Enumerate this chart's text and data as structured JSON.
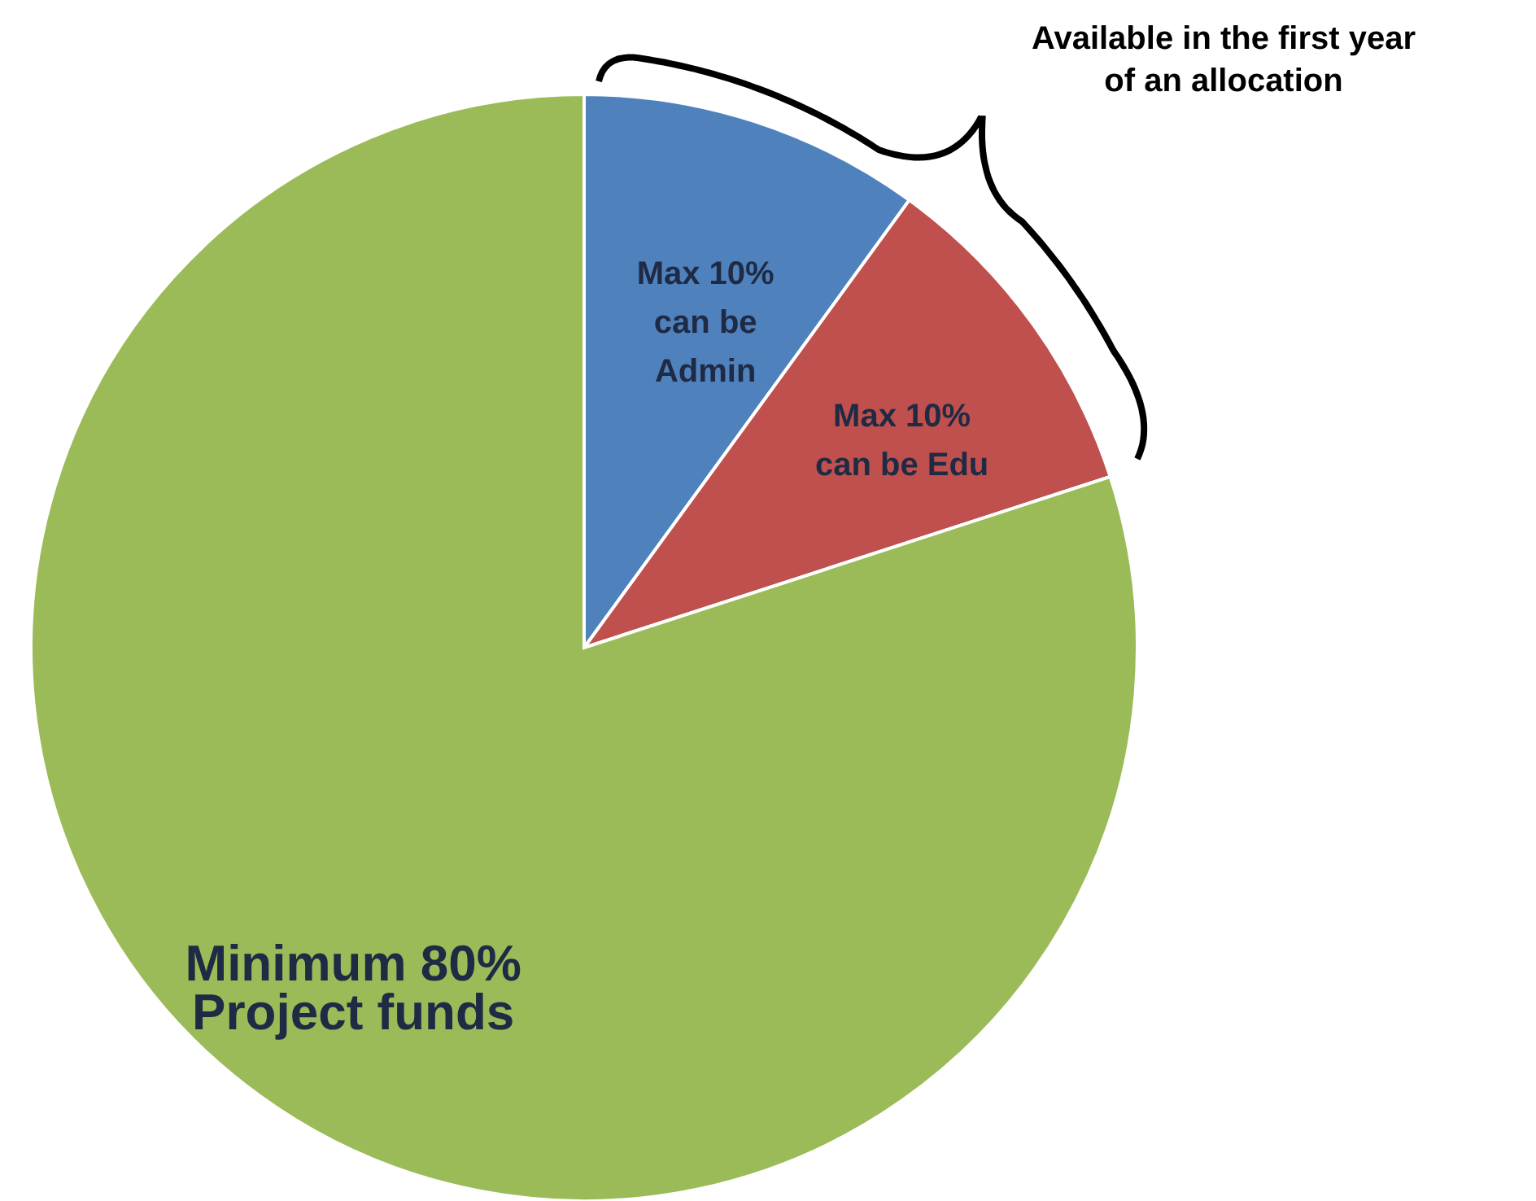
{
  "chart_data": {
    "type": "pie",
    "categories": [
      "Max 10%\ncan be\nAdmin",
      "Max 10%\ncan be Edu",
      "Minimum 80%\nProject funds"
    ],
    "values": [
      10,
      10,
      80
    ],
    "colors": [
      "#4f81bd",
      "#c0504d",
      "#9bbb59"
    ],
    "annotations": [
      "Available in the first year\nof an allocation"
    ]
  }
}
